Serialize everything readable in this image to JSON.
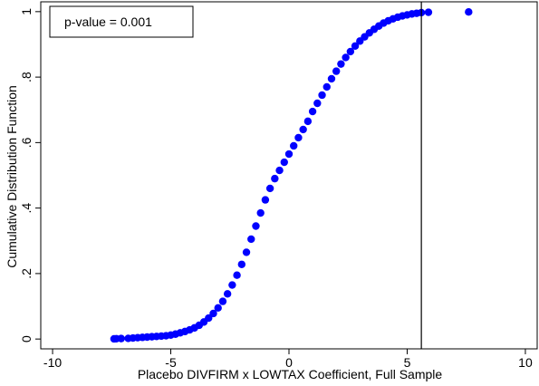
{
  "chart_data": {
    "type": "scatter",
    "title": "",
    "xlabel": "Placebo DIVFIRM x LOWTAX Coefficient, Full Sample",
    "ylabel": "Cumulative Distribution Function",
    "xlim": [
      -10.5,
      10.5
    ],
    "ylim": [
      -0.03,
      1.03
    ],
    "x_ticks": [
      -10,
      -5,
      0,
      5,
      10
    ],
    "x_tick_labels": [
      "-10",
      "-5",
      "0",
      "5",
      "10"
    ],
    "y_ticks": [
      0,
      0.2,
      0.4,
      0.6,
      0.8,
      1
    ],
    "y_tick_labels": [
      "0",
      ".2",
      ".4",
      ".6",
      ".8",
      "1"
    ],
    "grid": false,
    "marker_color": "#0000ff",
    "annotation": {
      "text": "p-value = 0.001",
      "position": "top-left"
    },
    "reference_line": {
      "x": 5.6,
      "color": "#000000"
    },
    "series": [
      {
        "points": [
          [
            -7.4,
            0.0005
          ],
          [
            -7.3,
            0.001
          ],
          [
            -7.1,
            0.0015
          ],
          [
            -6.8,
            0.002
          ],
          [
            -6.6,
            0.003
          ],
          [
            -6.4,
            0.004
          ],
          [
            -6.2,
            0.005
          ],
          [
            -6.0,
            0.006
          ],
          [
            -5.8,
            0.007
          ],
          [
            -5.6,
            0.008
          ],
          [
            -5.4,
            0.009
          ],
          [
            -5.2,
            0.01
          ],
          [
            -5.0,
            0.012
          ],
          [
            -4.8,
            0.015
          ],
          [
            -4.6,
            0.019
          ],
          [
            -4.4,
            0.023
          ],
          [
            -4.2,
            0.028
          ],
          [
            -4.0,
            0.034
          ],
          [
            -3.8,
            0.042
          ],
          [
            -3.6,
            0.052
          ],
          [
            -3.4,
            0.064
          ],
          [
            -3.2,
            0.078
          ],
          [
            -3.0,
            0.095
          ],
          [
            -2.8,
            0.115
          ],
          [
            -2.6,
            0.138
          ],
          [
            -2.4,
            0.165
          ],
          [
            -2.2,
            0.195
          ],
          [
            -2.0,
            0.228
          ],
          [
            -1.8,
            0.265
          ],
          [
            -1.6,
            0.305
          ],
          [
            -1.4,
            0.345
          ],
          [
            -1.2,
            0.385
          ],
          [
            -1.0,
            0.425
          ],
          [
            -0.8,
            0.46
          ],
          [
            -0.6,
            0.49
          ],
          [
            -0.4,
            0.515
          ],
          [
            -0.2,
            0.54
          ],
          [
            0.0,
            0.565
          ],
          [
            0.2,
            0.59
          ],
          [
            0.4,
            0.615
          ],
          [
            0.6,
            0.64
          ],
          [
            0.8,
            0.665
          ],
          [
            1.0,
            0.695
          ],
          [
            1.2,
            0.72
          ],
          [
            1.4,
            0.745
          ],
          [
            1.6,
            0.77
          ],
          [
            1.8,
            0.795
          ],
          [
            2.0,
            0.818
          ],
          [
            2.2,
            0.84
          ],
          [
            2.4,
            0.86
          ],
          [
            2.6,
            0.878
          ],
          [
            2.8,
            0.895
          ],
          [
            3.0,
            0.91
          ],
          [
            3.2,
            0.923
          ],
          [
            3.4,
            0.935
          ],
          [
            3.6,
            0.946
          ],
          [
            3.8,
            0.956
          ],
          [
            4.0,
            0.965
          ],
          [
            4.2,
            0.972
          ],
          [
            4.4,
            0.978
          ],
          [
            4.6,
            0.983
          ],
          [
            4.8,
            0.987
          ],
          [
            5.0,
            0.99
          ],
          [
            5.2,
            0.993
          ],
          [
            5.4,
            0.995
          ],
          [
            5.6,
            0.997
          ],
          [
            5.9,
            0.998
          ],
          [
            7.6,
            0.999
          ]
        ]
      }
    ]
  }
}
